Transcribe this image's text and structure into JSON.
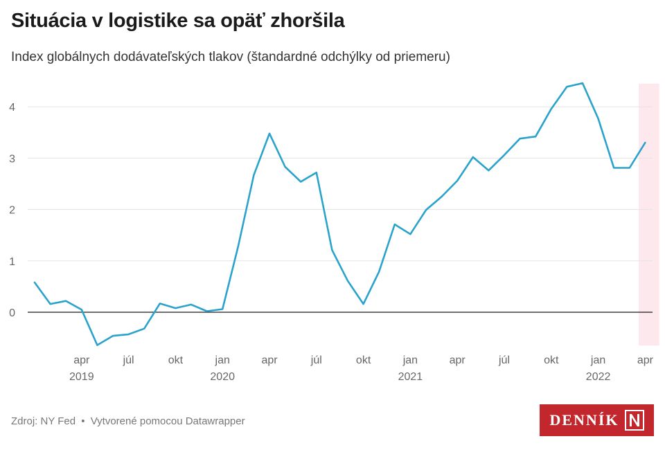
{
  "header": {
    "title": "Situácia v logistike sa opäť zhoršila",
    "subtitle": "Index globálnych dodávateľských tlakov (štandardné odchýlky od priemeru)"
  },
  "footer": {
    "source": "Zdroj: NY Fed",
    "separator": "•",
    "credit": "Vytvorené pomocou Datawrapper",
    "logo_text": "DENNÍK",
    "logo_mark": "N"
  },
  "colors": {
    "line": "#2aa3cc",
    "highlight": "#fde8ee",
    "logo": "#c1272d",
    "grid": "#e3e3e3",
    "zero": "#1a1a1a"
  },
  "chart_data": {
    "type": "line",
    "title": "Situácia v logistike sa opäť zhoršila",
    "subtitle": "Index globálnych dodávateľských tlakov (štandardné odchýlky od priemeru)",
    "xlabel": "",
    "ylabel": "",
    "ylim": [
      -0.65,
      4.45
    ],
    "yticks": [
      0,
      1,
      2,
      3,
      4
    ],
    "grid": true,
    "x": [
      "2019-01",
      "2019-02",
      "2019-03",
      "2019-04",
      "2019-05",
      "2019-06",
      "2019-07",
      "2019-08",
      "2019-09",
      "2019-10",
      "2019-11",
      "2019-12",
      "2020-01",
      "2020-02",
      "2020-03",
      "2020-04",
      "2020-05",
      "2020-06",
      "2020-07",
      "2020-08",
      "2020-09",
      "2020-10",
      "2020-11",
      "2020-12",
      "2021-01",
      "2021-02",
      "2021-03",
      "2021-04",
      "2021-05",
      "2021-06",
      "2021-07",
      "2021-08",
      "2021-09",
      "2021-10",
      "2021-11",
      "2021-12",
      "2022-01",
      "2022-02",
      "2022-03",
      "2022-04"
    ],
    "series": [
      {
        "values": [
          0.58,
          0.16,
          0.22,
          0.05,
          -0.64,
          -0.46,
          -0.43,
          -0.32,
          0.17,
          0.08,
          0.15,
          0.02,
          0.06,
          1.28,
          2.67,
          3.48,
          2.83,
          2.54,
          2.72,
          1.21,
          0.61,
          0.16,
          0.79,
          1.71,
          1.52,
          1.99,
          2.25,
          2.56,
          3.02,
          2.76,
          3.06,
          3.38,
          3.42,
          3.96,
          4.39,
          4.46,
          3.77,
          2.81,
          2.81,
          3.3
        ]
      }
    ],
    "x_tick_labels": [
      {
        "month": "2019-04",
        "label": "apr",
        "year": "2019"
      },
      {
        "month": "2019-07",
        "label": "júl",
        "year": ""
      },
      {
        "month": "2019-10",
        "label": "okt",
        "year": ""
      },
      {
        "month": "2020-01",
        "label": "jan",
        "year": "2020"
      },
      {
        "month": "2020-04",
        "label": "apr",
        "year": ""
      },
      {
        "month": "2020-07",
        "label": "júl",
        "year": ""
      },
      {
        "month": "2020-10",
        "label": "okt",
        "year": ""
      },
      {
        "month": "2021-01",
        "label": "jan",
        "year": "2021"
      },
      {
        "month": "2021-04",
        "label": "apr",
        "year": ""
      },
      {
        "month": "2021-07",
        "label": "júl",
        "year": ""
      },
      {
        "month": "2021-10",
        "label": "okt",
        "year": ""
      },
      {
        "month": "2022-01",
        "label": "jan",
        "year": "2022"
      },
      {
        "month": "2022-04",
        "label": "apr",
        "year": ""
      }
    ],
    "highlight": {
      "from": "2022-04",
      "to": "2022-04"
    }
  }
}
